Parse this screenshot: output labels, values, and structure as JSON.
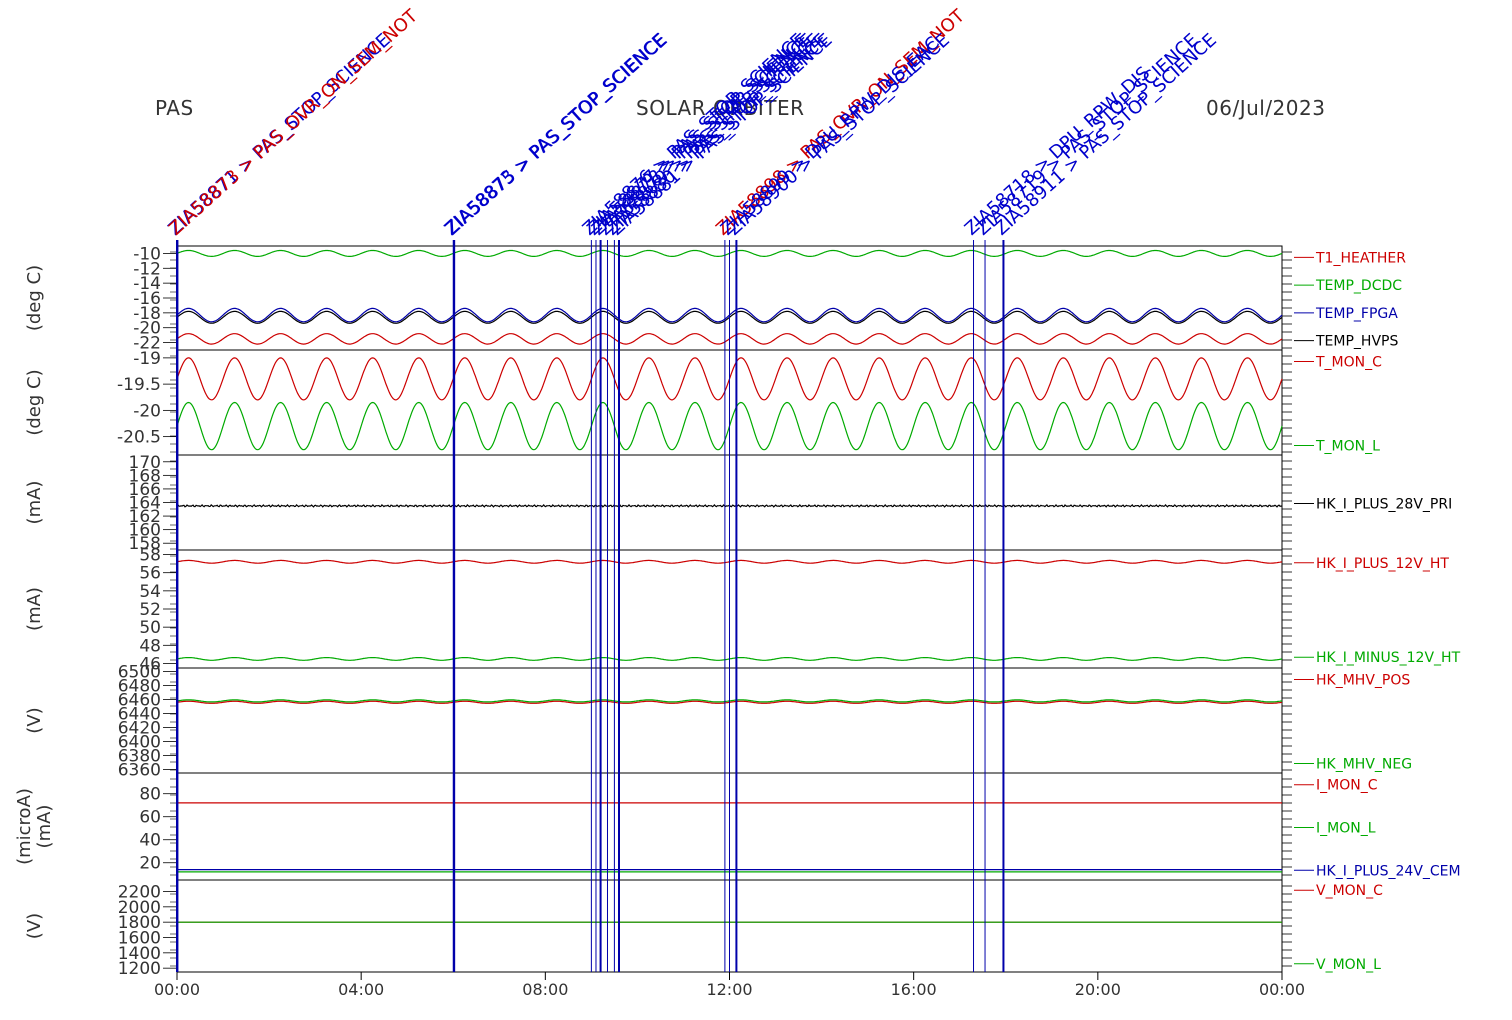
{
  "header": {
    "instrument": "PAS",
    "mission": "SOLAR ORBITER",
    "date": "06/Jul/2023"
  },
  "chart_data": {
    "type": "line",
    "x_ticks": [
      "00:00",
      "04:00",
      "08:00",
      "12:00",
      "16:00",
      "20:00",
      "00:00"
    ],
    "x_range_hours": [
      0,
      24
    ],
    "event_markers": [
      {
        "hour": 0.0,
        "label": "ZIA58871 > PAS_STOP_SCIENCE"
      },
      {
        "hour": 0.02,
        "label": "ZIA58873 > PAS_OVR_ON_SEM_NOT"
      },
      {
        "hour": 6.0,
        "label": "ZIA58873 > PAS_STOP_SCIENCE"
      },
      {
        "hour": 6.02,
        "label": "ZIA58875 > PAS_STOP_SCIENCE"
      },
      {
        "hour": 9.0,
        "label": "ZIA58876 > PAS_STOP_SCIENCE"
      },
      {
        "hour": 9.1,
        "label": "ZIA58877 > PAS_STOP_SCIENCE"
      },
      {
        "hour": 9.2,
        "label": "ZIA58878 > PAS_STOP_SCIENCE"
      },
      {
        "hour": 9.35,
        "label": "ZIA58879 > PAS_STOP_SCIENCE"
      },
      {
        "hour": 9.5,
        "label": "ZIA58880 > PAS_STOP_SCIENCE"
      },
      {
        "hour": 9.6,
        "label": "ZIA58881 > PAS_STOP_SCIENCE"
      },
      {
        "hour": 11.9,
        "label": "ZIA58898 > PAS_OVR_ON_SEM_NOT"
      },
      {
        "hour": 12.0,
        "label": "ZIA58899 > DPU_RPW_DIS_EAC"
      },
      {
        "hour": 12.15,
        "label": "ZIA58900 > PAS_STOP_SCIENCE"
      },
      {
        "hour": 17.3,
        "label": "ZIA58718 > DPU_RPW_DIS"
      },
      {
        "hour": 17.55,
        "label": "ZIA58719 > PAS_STOP_SCIENCE"
      },
      {
        "hour": 17.95,
        "label": "ZIA58911 > PAS_STOP_SCIENCE"
      }
    ],
    "panels": [
      {
        "ylabel": "(deg C)",
        "yticks": [
          -10,
          -12,
          -14,
          -16,
          -18,
          -20,
          -22
        ],
        "ylim": [
          -23,
          -9
        ],
        "series": [
          {
            "name": "T1_HEATHER",
            "color": "#cc0000",
            "base": -21.5,
            "amp": 0.7,
            "period_h": 1.0
          },
          {
            "name": "TEMP_DCDC",
            "color": "#00aa00",
            "base": -10.0,
            "amp": 0.4,
            "period_h": 1.0
          },
          {
            "name": "TEMP_FPGA",
            "color": "#0000aa",
            "base": -18.3,
            "amp": 0.9,
            "period_h": 1.0
          },
          {
            "name": "TEMP_HVPS",
            "color": "#000000",
            "base": -18.6,
            "amp": 0.8,
            "period_h": 1.0
          }
        ]
      },
      {
        "ylabel": "(deg C)",
        "yticks": [
          -19.0,
          -19.5,
          -20.0,
          -20.5
        ],
        "ylim": [
          -20.85,
          -18.85
        ],
        "series": [
          {
            "name": "T_MON_C",
            "color": "#cc0000",
            "base": -19.4,
            "amp": 0.4,
            "period_h": 1.0
          },
          {
            "name": "T_MON_L",
            "color": "#00aa00",
            "base": -20.3,
            "amp": 0.45,
            "period_h": 1.0
          }
        ]
      },
      {
        "ylabel": "(mA)",
        "yticks": [
          170,
          168,
          166,
          164,
          162,
          160,
          158
        ],
        "ylim": [
          157,
          171
        ],
        "series": [
          {
            "name": "HK_I_PLUS_28V_PRI",
            "color": "#000000",
            "base": 163.5,
            "amp": 0.15,
            "period_h": 0.3
          }
        ]
      },
      {
        "ylabel": "(mA)",
        "yticks": [
          58,
          56,
          54,
          52,
          50,
          48,
          46
        ],
        "ylim": [
          45.5,
          58.5
        ],
        "series": [
          {
            "name": "HK_I_PLUS_12V_HT",
            "color": "#cc0000",
            "base": 57.2,
            "amp": 0.15,
            "period_h": 1.0
          },
          {
            "name": "HK_I_MINUS_12V_HT",
            "color": "#00aa00",
            "base": 46.5,
            "amp": 0.15,
            "period_h": 1.0
          }
        ]
      },
      {
        "ylabel": "(V)",
        "yticks": [
          6500,
          6480,
          6460,
          6440,
          6420,
          6400,
          6380,
          6360
        ],
        "ylim": [
          6355,
          6505
        ],
        "series": [
          {
            "name": "HK_MHV_POS",
            "color": "#cc0000",
            "base": 6456,
            "amp": 1.5,
            "period_h": 1.0
          },
          {
            "name": "HK_MHV_NEG",
            "color": "#00aa00",
            "base": 6458,
            "amp": 1.5,
            "period_h": 1.0
          }
        ]
      },
      {
        "ylabel": "(microA)\n(mA)",
        "yticks": [
          80,
          60,
          40,
          20
        ],
        "ylim": [
          5,
          98
        ],
        "series": [
          {
            "name": "I_MON_C",
            "color": "#cc0000",
            "base": 72,
            "amp": 0,
            "period_h": 1.0
          },
          {
            "name": "I_MON_L",
            "color": "#00aa00",
            "base": 12,
            "amp": 0,
            "period_h": 1.0
          },
          {
            "name": "HK_I_PLUS_24V_CEM",
            "color": "#0000aa",
            "base": 14,
            "amp": 0,
            "period_h": 1.0
          }
        ]
      },
      {
        "ylabel": "(V)",
        "yticks": [
          2200,
          2000,
          1800,
          1600,
          1400,
          1200
        ],
        "ylim": [
          1150,
          2350
        ],
        "series": [
          {
            "name": "V_MON_C",
            "color": "#cc0000",
            "base": 1800,
            "amp": 0,
            "period_h": 1.0
          },
          {
            "name": "V_MON_L",
            "color": "#00aa00",
            "base": 1800,
            "amp": 0,
            "period_h": 1.0
          }
        ]
      }
    ]
  }
}
